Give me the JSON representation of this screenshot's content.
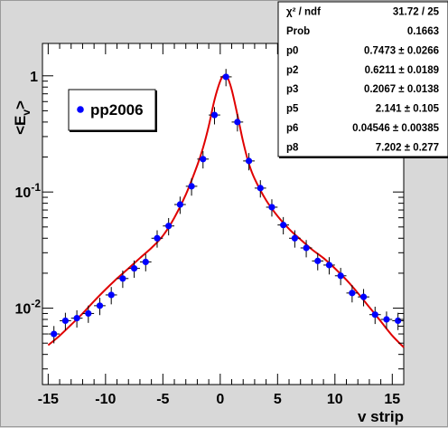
{
  "chart_data": {
    "type": "scatter",
    "xlabel": "v strip",
    "ylabel": "<E_v>",
    "xlim": [
      -15.5,
      16
    ],
    "ylim": [
      0.0022,
      1.9
    ],
    "yscale": "log",
    "x_ticks": [
      -15,
      -10,
      -5,
      0,
      5,
      10,
      15
    ],
    "y_ticks": [
      {
        "value": 1,
        "base": "1",
        "exp": ""
      },
      {
        "value": 0.1,
        "base": "10",
        "exp": "-1"
      },
      {
        "value": 0.01,
        "base": "10",
        "exp": "-2"
      }
    ],
    "grid": false,
    "legend": {
      "position": "top-left",
      "entries": [
        "pp2006"
      ]
    },
    "colors": {
      "points": "#0000ff",
      "fit": "#e00000",
      "background": "#d8d8d8",
      "plot_area": "#ffffff"
    },
    "series": [
      {
        "name": "pp2006",
        "x": [
          -14.5,
          -13.5,
          -12.5,
          -11.5,
          -10.5,
          -9.5,
          -8.5,
          -7.5,
          -6.5,
          -5.5,
          -4.5,
          -3.5,
          -2.5,
          -1.5,
          -0.5,
          0.5,
          1.5,
          2.5,
          3.5,
          4.5,
          5.5,
          6.5,
          7.5,
          8.5,
          9.5,
          10.5,
          11.5,
          12.5,
          13.5,
          14.5,
          15.5
        ],
        "y": [
          0.006,
          0.0078,
          0.0082,
          0.009,
          0.0105,
          0.013,
          0.018,
          0.022,
          0.025,
          0.04,
          0.051,
          0.078,
          0.112,
          0.192,
          0.46,
          0.98,
          0.4,
          0.185,
          0.108,
          0.074,
          0.052,
          0.04,
          0.033,
          0.0255,
          0.0235,
          0.019,
          0.0135,
          0.0125,
          0.0088,
          0.008,
          0.0078
        ]
      }
    ],
    "fit_curve": {
      "x": [
        -15,
        -14,
        -13,
        -12,
        -11,
        -10,
        -9,
        -8,
        -7,
        -6,
        -5,
        -4,
        -3,
        -2,
        -1.5,
        -1,
        -0.5,
        0,
        0.3,
        0.6,
        1,
        1.5,
        2,
        2.5,
        3,
        4,
        5,
        6,
        7,
        8,
        9,
        10,
        11,
        12,
        13,
        14,
        15,
        16
      ],
      "y": [
        0.0048,
        0.0058,
        0.0072,
        0.009,
        0.0115,
        0.0145,
        0.018,
        0.022,
        0.027,
        0.033,
        0.042,
        0.06,
        0.095,
        0.17,
        0.24,
        0.37,
        0.62,
        0.9,
        1.0,
        0.98,
        0.76,
        0.46,
        0.27,
        0.175,
        0.13,
        0.085,
        0.062,
        0.048,
        0.039,
        0.032,
        0.027,
        0.022,
        0.0175,
        0.0135,
        0.0102,
        0.0077,
        0.0058,
        0.0046
      ]
    },
    "stats_box": [
      {
        "label": "χ² / ndf",
        "value": "31.72 / 25"
      },
      {
        "label": "Prob",
        "value": "0.1663"
      },
      {
        "label": "p0",
        "value": "0.7473 ± 0.0266"
      },
      {
        "label": "p2",
        "value": "0.6211 ± 0.0189"
      },
      {
        "label": "p3",
        "value": "0.2067 ± 0.0138"
      },
      {
        "label": "p5",
        "value": "2.141 ± 0.105"
      },
      {
        "label": "p6",
        "value": "0.04546 ± 0.00385"
      },
      {
        "label": "p8",
        "value": "7.202 ± 0.277"
      }
    ]
  }
}
